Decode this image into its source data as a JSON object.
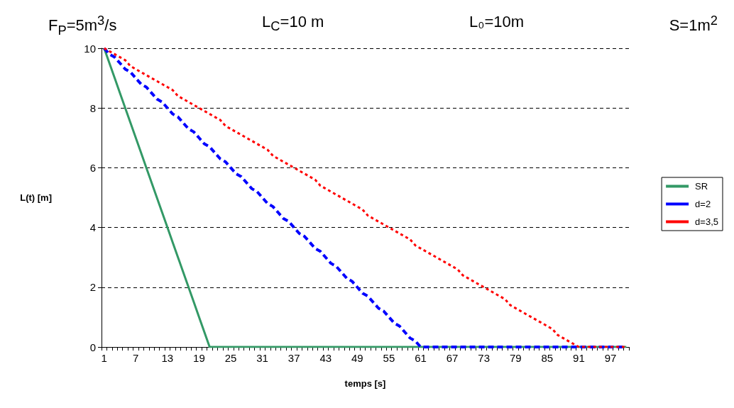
{
  "chart_data": {
    "type": "line",
    "annotations": [
      "F$_{P}$=5m$^{3}$/s",
      "L$_{C}$=10 m",
      "L₀=10m",
      "S=1m$^{2}$"
    ],
    "xlabel": "temps [s]",
    "ylabel": "L(t) [m]",
    "categories": [
      "1",
      null,
      null,
      null,
      null,
      null,
      "7",
      null,
      null,
      null,
      null,
      null,
      "13",
      null,
      null,
      null,
      null,
      null,
      "19",
      null,
      null,
      null,
      null,
      null,
      "25",
      null,
      null,
      null,
      null,
      null,
      "31",
      null,
      null,
      null,
      null,
      null,
      "37",
      null,
      null,
      null,
      null,
      null,
      "43",
      null,
      null,
      null,
      null,
      null,
      "49",
      null,
      null,
      null,
      null,
      null,
      "55",
      null,
      null,
      null,
      null,
      null,
      "61",
      null,
      null,
      null,
      null,
      null,
      "67",
      null,
      null,
      null,
      null,
      null,
      "73",
      null,
      null,
      null,
      null,
      null,
      "79",
      null,
      null,
      null,
      null,
      null,
      "85",
      null,
      null,
      null,
      null,
      null,
      "91",
      null,
      null,
      null,
      null,
      null,
      "97",
      null,
      null,
      null
    ],
    "series": [
      {
        "name": "SR",
        "color": "#339966",
        "line_style": "solid",
        "values": [
          10,
          9.5,
          9,
          8.5,
          8,
          7.5,
          7,
          6.5,
          6,
          5.5,
          5,
          4.5,
          4,
          3.5,
          3,
          2.5,
          2,
          1.5,
          1,
          0.5,
          0,
          0,
          0,
          0,
          0,
          0,
          0,
          0,
          0,
          0,
          0,
          0,
          0,
          0,
          0,
          0,
          0,
          0,
          0,
          0,
          0,
          0,
          0,
          0,
          0,
          0,
          0,
          0,
          0,
          0,
          0,
          0,
          0,
          0,
          0,
          0,
          0,
          0,
          0,
          0,
          0,
          0,
          0,
          0,
          0,
          0,
          0,
          0,
          0,
          0,
          0,
          0,
          0,
          0,
          0,
          0,
          0,
          0,
          0,
          0,
          0,
          0,
          0,
          0,
          0,
          0,
          0,
          0,
          0,
          0,
          0,
          0,
          0,
          0,
          0,
          0,
          0,
          0,
          0,
          0
        ]
      },
      {
        "name": "d=2",
        "color": "#0000ff",
        "line_style": "dashed",
        "values": [
          10,
          9.8,
          9.7,
          9.5,
          9.3,
          9.2,
          9,
          8.8,
          8.7,
          8.5,
          8.3,
          8.2,
          8,
          7.8,
          7.7,
          7.5,
          7.3,
          7.2,
          7,
          6.8,
          6.7,
          6.5,
          6.3,
          6.2,
          6,
          5.8,
          5.7,
          5.5,
          5.3,
          5.2,
          5,
          4.8,
          4.7,
          4.5,
          4.3,
          4.2,
          4,
          3.8,
          3.7,
          3.5,
          3.3,
          3.2,
          3,
          2.8,
          2.7,
          2.5,
          2.3,
          2.2,
          2,
          1.8,
          1.7,
          1.5,
          1.3,
          1.2,
          1,
          0.8,
          0.7,
          0.5,
          0.3,
          0.2,
          0,
          0,
          0,
          0,
          0,
          0,
          0,
          0,
          0,
          0,
          0,
          0,
          0,
          0,
          0,
          0,
          0,
          0,
          0,
          0,
          0,
          0,
          0,
          0,
          0,
          0,
          0,
          0,
          0,
          0,
          0,
          0,
          0,
          0,
          0,
          0,
          0,
          0,
          0,
          0
        ]
      },
      {
        "name": "d=3,5",
        "color": "#ff0000",
        "line_style": "dotted",
        "values": [
          10,
          9.9,
          9.8,
          9.7,
          9.6,
          9.4,
          9.3,
          9.2,
          9.1,
          9,
          8.9,
          8.8,
          8.7,
          8.6,
          8.4,
          8.3,
          8.2,
          8.1,
          8,
          7.9,
          7.8,
          7.7,
          7.6,
          7.4,
          7.3,
          7.2,
          7.1,
          7,
          6.9,
          6.8,
          6.7,
          6.6,
          6.4,
          6.3,
          6.2,
          6.1,
          6,
          5.9,
          5.8,
          5.7,
          5.6,
          5.4,
          5.3,
          5.2,
          5.1,
          5,
          4.9,
          4.8,
          4.7,
          4.6,
          4.4,
          4.3,
          4.2,
          4.1,
          4,
          3.9,
          3.8,
          3.7,
          3.6,
          3.4,
          3.3,
          3.2,
          3.1,
          3,
          2.9,
          2.8,
          2.7,
          2.6,
          2.4,
          2.3,
          2.2,
          2.1,
          2,
          1.9,
          1.8,
          1.7,
          1.6,
          1.4,
          1.3,
          1.2,
          1.1,
          1,
          0.9,
          0.8,
          0.7,
          0.6,
          0.4,
          0.3,
          0.2,
          0.1,
          0,
          0,
          0,
          0,
          0,
          0,
          0,
          0,
          0,
          0
        ]
      }
    ],
    "ylim": [
      0,
      10
    ],
    "yticks": [
      0,
      2,
      4,
      6,
      8,
      10
    ],
    "grid": "y",
    "legend": "right",
    "marker": "none"
  }
}
